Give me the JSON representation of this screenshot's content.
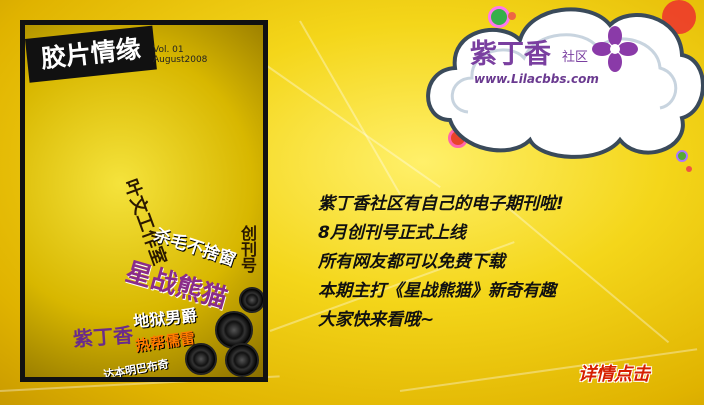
{
  "cover": {
    "title": "胶片情缘",
    "vol": "Vol. 01",
    "date": "August2008",
    "studio": "叶文工作室",
    "issue": "创刊号",
    "t1": "杀毛不捨窗",
    "t2": "星战熊猫",
    "t3": "地狱男爵",
    "t4": "紫丁香",
    "t5": "热帮儒雷",
    "t6": "达本明巴布奇"
  },
  "logo": {
    "name": "紫丁香",
    "community": "社区",
    "url": "www.Lilacbbs.com"
  },
  "announcement": {
    "lines": [
      "紫丁香社区有自己的电子期刊啦!",
      "8月创刊号正式上线",
      "所有网友都可以免费下载",
      "本期主打《星战熊猫》新奇有趣",
      "大家快来看哦~"
    ]
  },
  "details_label": "详情点击",
  "colors": {
    "background": "#f4d61a",
    "accent": "#d61f00",
    "logo_purple": "#7a3fa0"
  }
}
